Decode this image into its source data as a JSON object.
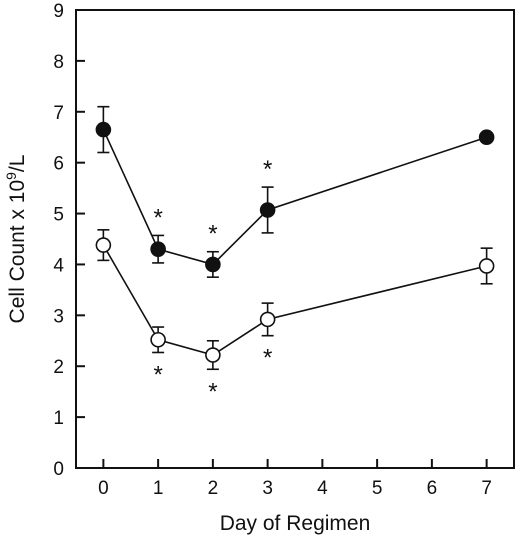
{
  "chart_data": {
    "type": "line",
    "xlabel": "Day of Regimen",
    "ylabel": "Cell Count x 10",
    "ylabel_sup": "9",
    "ylabel_tail": "/L",
    "xlim": [
      -0.5,
      7.5
    ],
    "ylim": [
      0,
      9
    ],
    "x_ticks": [
      0,
      1,
      2,
      3,
      4,
      5,
      6,
      7
    ],
    "y_ticks": [
      0,
      1,
      2,
      3,
      4,
      5,
      6,
      7,
      8,
      9
    ],
    "grid": false,
    "series": [
      {
        "marker": "filled-circle",
        "x": [
          0,
          1,
          2,
          3,
          7
        ],
        "y": [
          6.65,
          4.3,
          4.0,
          5.07,
          6.5
        ],
        "err": [
          0.45,
          0.27,
          0.25,
          0.45,
          0
        ],
        "significant": [
          false,
          true,
          true,
          true,
          false
        ],
        "star_position": "above"
      },
      {
        "marker": "open-circle",
        "x": [
          0,
          1,
          2,
          3,
          7
        ],
        "y": [
          4.38,
          2.52,
          2.22,
          2.92,
          3.97
        ],
        "err": [
          0.3,
          0.25,
          0.28,
          0.32,
          0.35
        ],
        "significant": [
          false,
          true,
          true,
          true,
          false
        ],
        "star_position": "below"
      }
    ],
    "annotation_symbol": "*"
  }
}
